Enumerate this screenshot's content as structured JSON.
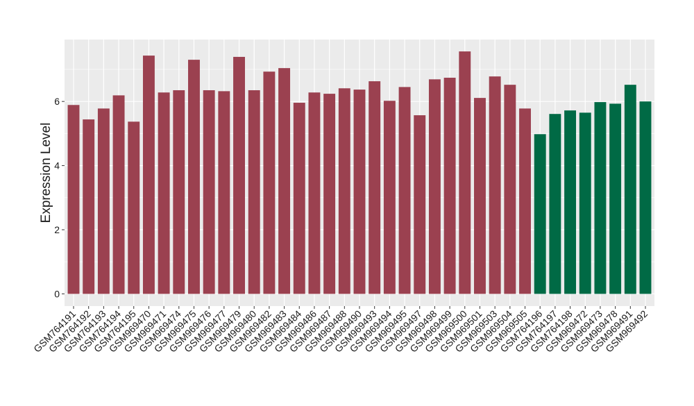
{
  "chart_data": {
    "type": "bar",
    "y_label": "Expression Level",
    "categories": [
      "GSM764191",
      "GSM764192",
      "GSM764193",
      "GSM764194",
      "GSM764195",
      "GSM969470",
      "GSM969471",
      "GSM969474",
      "GSM969475",
      "GSM969476",
      "GSM969477",
      "GSM969479",
      "GSM969480",
      "GSM969482",
      "GSM969483",
      "GSM969484",
      "GSM969486",
      "GSM969487",
      "GSM969488",
      "GSM969490",
      "GSM969493",
      "GSM969494",
      "GSM969495",
      "GSM969497",
      "GSM969498",
      "GSM969499",
      "GSM969500",
      "GSM969501",
      "GSM969503",
      "GSM969504",
      "GSM969505",
      "GSM764196",
      "GSM764197",
      "GSM764198",
      "GSM969472",
      "GSM969473",
      "GSM969478",
      "GSM969491",
      "GSM969492"
    ],
    "values": [
      5.89,
      5.44,
      5.78,
      6.19,
      5.37,
      7.43,
      6.28,
      6.35,
      7.3,
      6.35,
      6.32,
      7.39,
      6.35,
      6.93,
      7.04,
      5.96,
      6.28,
      6.24,
      6.41,
      6.37,
      6.63,
      6.02,
      6.45,
      5.57,
      6.69,
      6.74,
      7.56,
      6.11,
      6.78,
      6.52,
      5.78,
      4.98,
      5.61,
      5.72,
      5.65,
      5.98,
      5.93,
      6.52,
      6.0
    ],
    "colors": [
      "#9b4150",
      "#9b4150",
      "#9b4150",
      "#9b4150",
      "#9b4150",
      "#9b4150",
      "#9b4150",
      "#9b4150",
      "#9b4150",
      "#9b4150",
      "#9b4150",
      "#9b4150",
      "#9b4150",
      "#9b4150",
      "#9b4150",
      "#9b4150",
      "#9b4150",
      "#9b4150",
      "#9b4150",
      "#9b4150",
      "#9b4150",
      "#9b4150",
      "#9b4150",
      "#9b4150",
      "#9b4150",
      "#9b4150",
      "#9b4150",
      "#9b4150",
      "#9b4150",
      "#9b4150",
      "#9b4150",
      "#006a45",
      "#006a45",
      "#006a45",
      "#006a45",
      "#006a45",
      "#006a45",
      "#006a45",
      "#006a45"
    ],
    "ylim": [
      -0.38,
      7.93
    ],
    "yticks": [
      0,
      2,
      4,
      6
    ],
    "grid": true
  }
}
